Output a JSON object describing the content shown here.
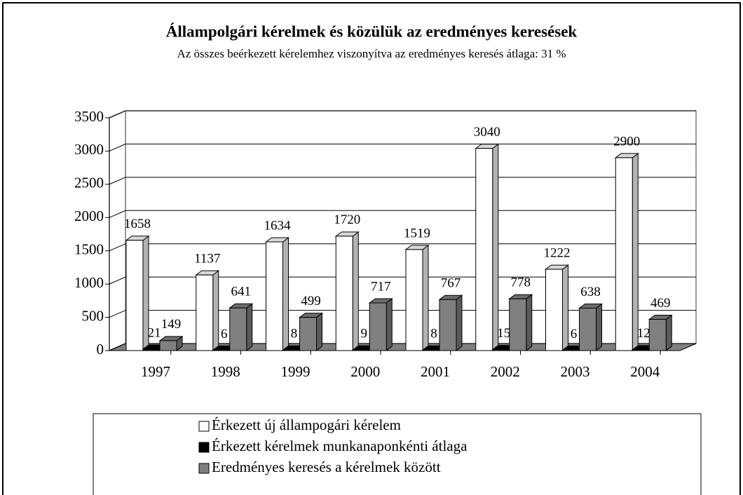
{
  "chart_data": {
    "type": "bar3d",
    "title": "Állampolgári kérelmek és közülük az eredményes keresések",
    "subtitle": "Az összes beérkezett kérelemhez viszonyítva az eredményes keresés átlaga: 31 %",
    "categories": [
      "1997",
      "1998",
      "1999",
      "2000",
      "2001",
      "2002",
      "2003",
      "2004"
    ],
    "series": [
      {
        "name": "Érkezett új állampogári kérelem",
        "color": "#ffffff",
        "values": [
          1658,
          1137,
          1634,
          1720,
          1519,
          3040,
          1222,
          2900
        ]
      },
      {
        "name": "Érkezett kérelmek munkanaponkénti átlaga",
        "color": "#000000",
        "values": [
          21,
          6,
          8,
          9,
          8,
          15,
          6,
          12
        ]
      },
      {
        "name": "Eredményes keresés a kérelmek között",
        "color": "#808080",
        "values": [
          149,
          641,
          499,
          717,
          767,
          778,
          638,
          469
        ]
      }
    ],
    "ylim": [
      0,
      3500
    ],
    "yticks": [
      0,
      500,
      1000,
      1500,
      2000,
      2500,
      3000,
      3500
    ],
    "grid": true,
    "legend": "bottom"
  }
}
